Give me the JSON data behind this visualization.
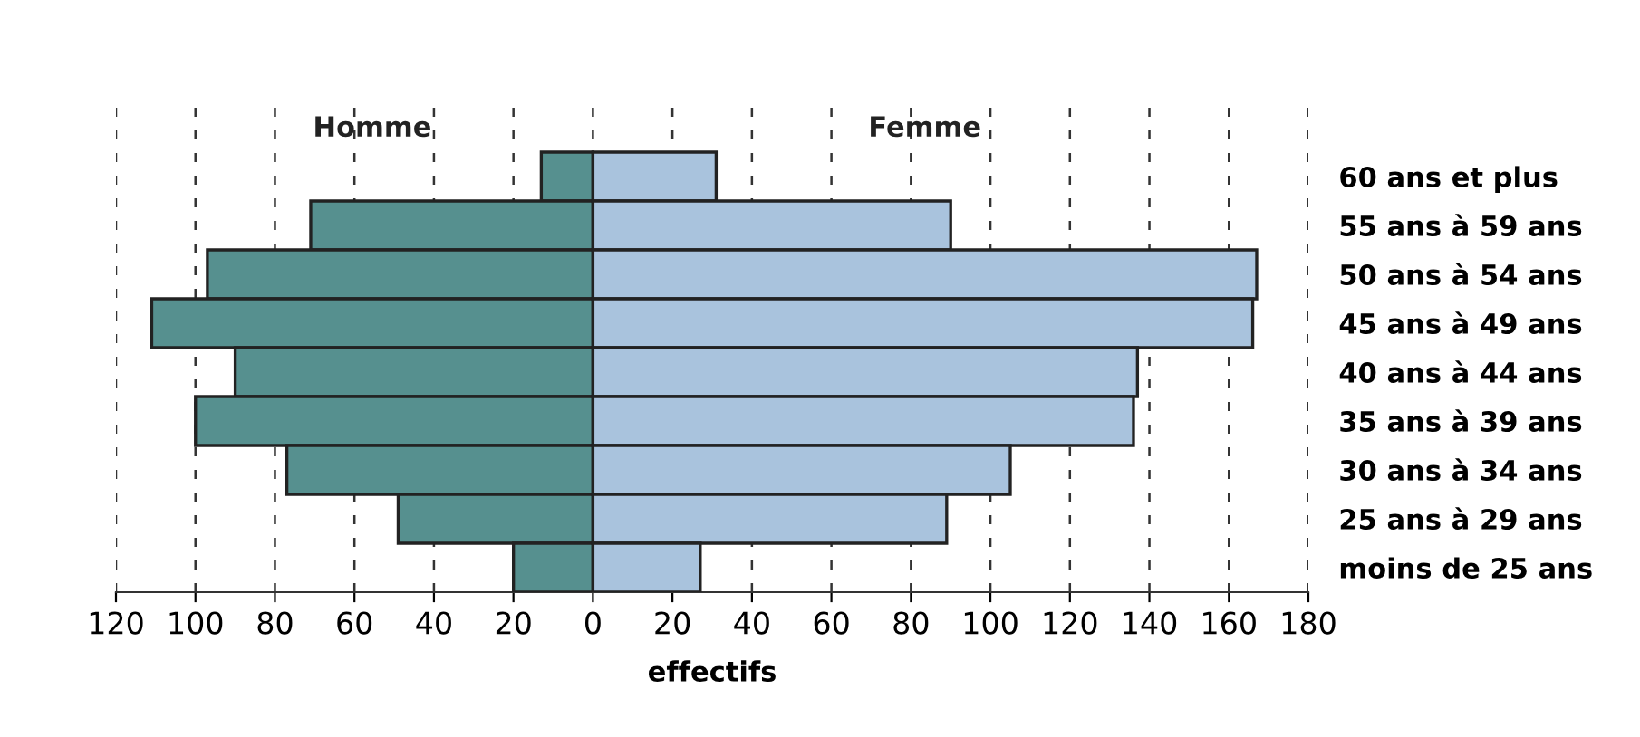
{
  "chart_data": {
    "type": "bar",
    "orientation": "horizontal",
    "stacked": true,
    "xlabel": "effectifs",
    "categories": [
      "60 ans et plus",
      "55 ans à 59 ans",
      "50 ans à 54 ans",
      "45 ans à 49 ans",
      "40 ans à 44 ans",
      "35 ans à 39 ans",
      "30 ans à 34 ans",
      "25 ans à 29 ans",
      "moins de 25 ans"
    ],
    "series": [
      {
        "name": "Homme",
        "color": "#56908f",
        "values": [
          -13,
          -71,
          -97,
          -111,
          -90,
          -100,
          -77,
          -49,
          -20
        ]
      },
      {
        "name": "Femme",
        "color": "#a9c3dd",
        "values": [
          31,
          90,
          167,
          166,
          137,
          136,
          105,
          89,
          27
        ]
      }
    ],
    "xlim": [
      -120,
      180
    ],
    "xticks": [
      {
        "value": -120,
        "label": "120"
      },
      {
        "value": -100,
        "label": "100"
      },
      {
        "value": -80,
        "label": "80"
      },
      {
        "value": -60,
        "label": "60"
      },
      {
        "value": -40,
        "label": "40"
      },
      {
        "value": -20,
        "label": "20"
      },
      0,
      20,
      40,
      60,
      80,
      100,
      120,
      140,
      160,
      180
    ],
    "grid": "x",
    "legend": false
  }
}
